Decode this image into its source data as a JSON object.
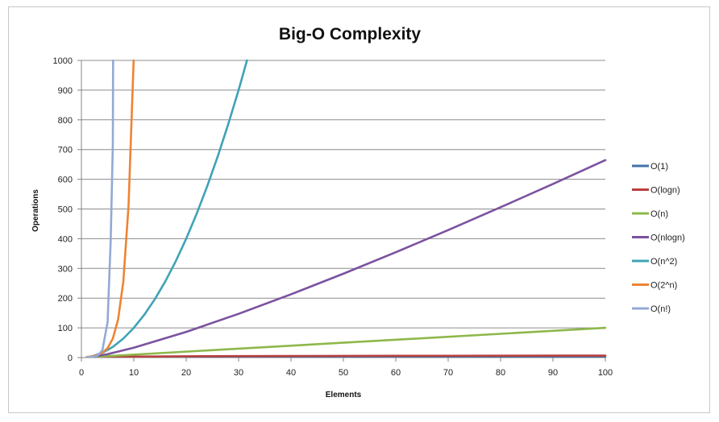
{
  "chart_data": {
    "type": "line",
    "title": "Big-O Complexity",
    "xlabel": "Elements",
    "ylabel": "Operations",
    "xlim": [
      0,
      100
    ],
    "ylim": [
      0,
      1000
    ],
    "x_ticks": [
      0,
      10,
      20,
      30,
      40,
      50,
      60,
      70,
      80,
      90,
      100
    ],
    "y_ticks": [
      0,
      100,
      200,
      300,
      400,
      500,
      600,
      700,
      800,
      900,
      1000
    ],
    "grid": "horizontal",
    "legend": "right",
    "series": [
      {
        "name": "O(1)",
        "color": "#4472a8",
        "x": [
          1,
          100
        ],
        "y": [
          1,
          1
        ]
      },
      {
        "name": "O(logn)",
        "color": "#b9413f",
        "x": [
          1,
          2,
          5,
          10,
          20,
          30,
          40,
          50,
          60,
          70,
          80,
          90,
          100
        ],
        "y": [
          0,
          1,
          2.32,
          3.32,
          4.32,
          4.91,
          5.32,
          5.64,
          5.91,
          6.13,
          6.32,
          6.49,
          6.64
        ]
      },
      {
        "name": "O(n)",
        "color": "#8db84a",
        "x": [
          1,
          100
        ],
        "y": [
          1,
          100
        ]
      },
      {
        "name": "O(nlogn)",
        "color": "#7b52a0",
        "x": [
          1,
          2,
          5,
          10,
          20,
          30,
          40,
          50,
          60,
          70,
          80,
          90,
          100
        ],
        "y": [
          0,
          2,
          11.6,
          33.2,
          86.4,
          147.2,
          212.9,
          282.2,
          354.4,
          429.1,
          505.8,
          584.3,
          664.4
        ]
      },
      {
        "name": "O(n^2)",
        "color": "#3fa3b5",
        "x": [
          1,
          2,
          4,
          6,
          8,
          10,
          12,
          14,
          16,
          18,
          20,
          22,
          24,
          26,
          28,
          30,
          31.6
        ],
        "y": [
          1,
          4,
          16,
          36,
          64,
          100,
          144,
          196,
          256,
          324,
          400,
          484,
          576,
          676,
          784,
          900,
          1000
        ]
      },
      {
        "name": "O(2^n)",
        "color": "#ee8432",
        "x": [
          1,
          2,
          3,
          4,
          5,
          6,
          7,
          8,
          9,
          9.97
        ],
        "y": [
          2,
          4,
          8,
          16,
          32,
          64,
          128,
          256,
          512,
          1000
        ]
      },
      {
        "name": "O(n!)",
        "color": "#93a9d6",
        "x": [
          1,
          2,
          3,
          4,
          5,
          5.6,
          6,
          6.05
        ],
        "y": [
          1,
          2,
          6,
          24,
          120,
          400,
          720,
          1000
        ]
      }
    ]
  }
}
